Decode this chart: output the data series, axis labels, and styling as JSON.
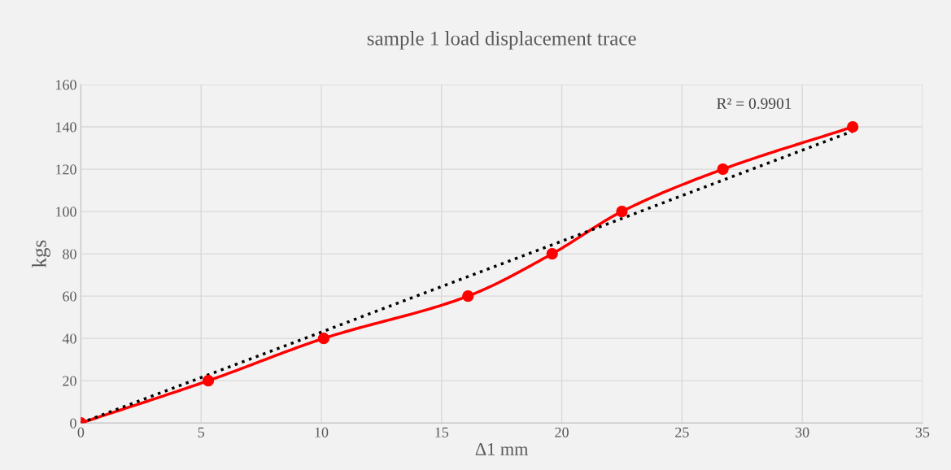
{
  "chart_data": {
    "type": "line",
    "title": "sample 1 load displacement trace",
    "xlabel": "Δ1 mm",
    "ylabel": "kgs",
    "xlim": [
      0,
      35
    ],
    "xticks": [
      0,
      5,
      10,
      15,
      20,
      25,
      30,
      35
    ],
    "ylim": [
      0,
      160
    ],
    "yticks": [
      0,
      20,
      40,
      60,
      80,
      100,
      120,
      140,
      160
    ],
    "grid": true,
    "series": [
      {
        "color": "#ff0000",
        "marker": "circle",
        "line_style": "solid",
        "x": [
          0,
          5.3,
          10.1,
          16.1,
          19.6,
          22.5,
          26.7,
          32.1
        ],
        "values": [
          0,
          20,
          40,
          60,
          80,
          100,
          120,
          140
        ]
      },
      {
        "color": "#000000",
        "marker": "none",
        "line_style": "dotted",
        "x": [
          0,
          32.1
        ],
        "values": [
          0,
          138
        ]
      }
    ],
    "annotations": [
      "R² = 0.9901"
    ]
  }
}
